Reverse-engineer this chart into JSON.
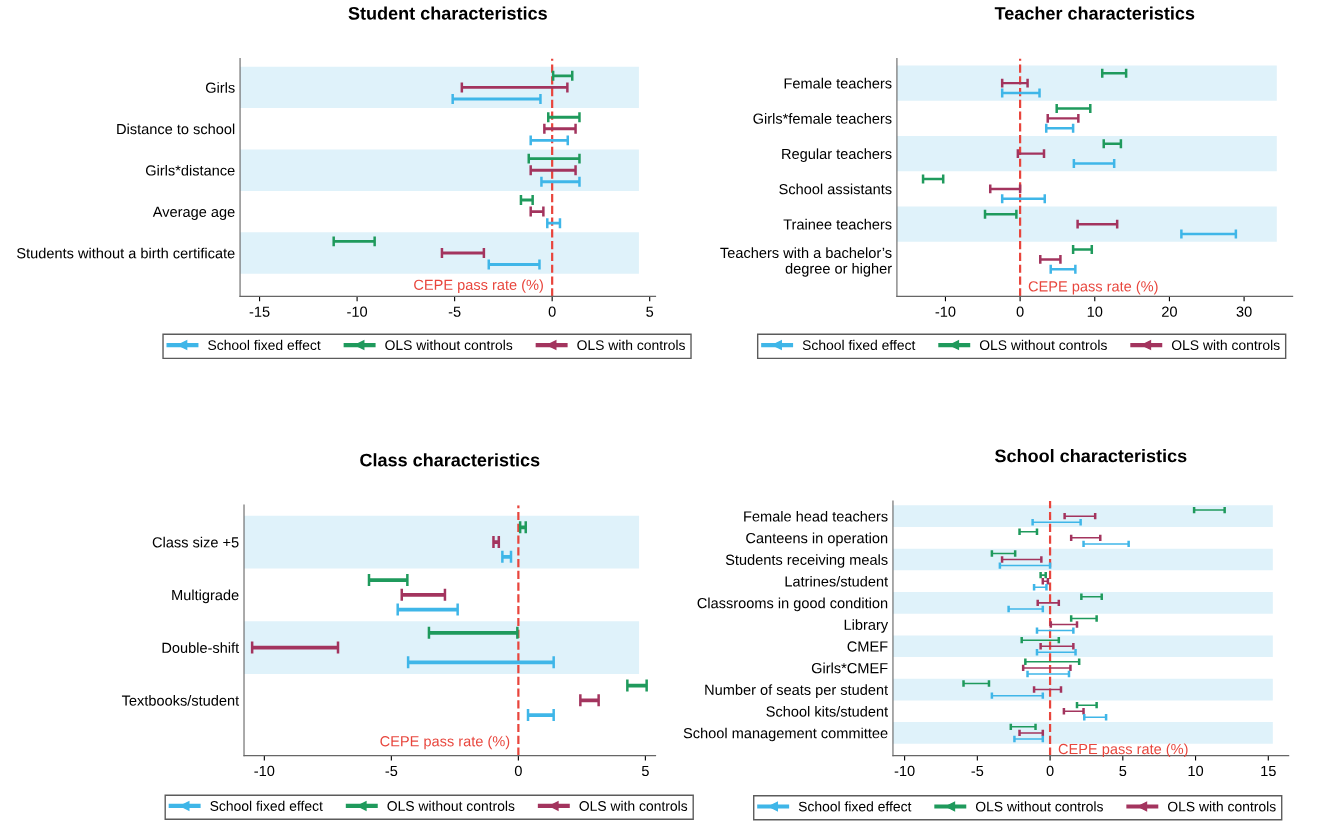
{
  "chart_data": [
    {
      "type": "bar",
      "orientation": "horizontal",
      "title": "Student characteristics",
      "grid": false,
      "legend": "bottom",
      "categories": [
        "Girls",
        "Distance to school",
        "Girls*distance",
        "Average age",
        "Students without a birth certificate"
      ],
      "series": [
        {
          "name": "OLS without controls",
          "color": "#1f9a5c",
          "base": [
            0.05,
            -0.2,
            -1.2,
            -1.6,
            -11.2
          ],
          "values": [
            0.98,
            1.6,
            2.6,
            0.6,
            2.1
          ]
        },
        {
          "name": "OLS with controls",
          "color": "#a3345e",
          "base": [
            -4.63,
            -0.4,
            -1.1,
            -1.1,
            -5.65
          ],
          "values": [
            5.41,
            1.6,
            2.3,
            0.65,
            2.15
          ]
        },
        {
          "name": "School fixed effect",
          "color": "#3fb6e8",
          "base": [
            -5.1,
            -1.1,
            -0.55,
            -0.25,
            -3.25
          ],
          "values": [
            4.5,
            1.9,
            1.95,
            0.65,
            2.6
          ]
        }
      ],
      "xlim": [
        -16,
        5.3
      ],
      "xticks": [
        -15,
        -10,
        -5,
        0,
        5
      ],
      "ref_lines": [
        {
          "axis": "x",
          "value": 0,
          "label": "CEPE pass rate (%)",
          "color": "#e8453c",
          "line_style": "dashed"
        }
      ]
    },
    {
      "type": "bar",
      "orientation": "horizontal",
      "title": "Teacher characteristics",
      "grid": false,
      "legend": "bottom",
      "categories": [
        "Female teachers",
        "Girls*female teachers",
        "Regular teachers",
        "School assistants",
        "Trainee teachers",
        "Teachers with a bachelor’s\ndegree or higher"
      ],
      "series": [
        {
          "name": "OLS without controls",
          "color": "#1f9a5c",
          "base": [
            11.0,
            4.9,
            11.2,
            -13.0,
            -4.7,
            7.1
          ],
          "values": [
            3.2,
            4.5,
            2.3,
            2.7,
            4.2,
            2.5
          ]
        },
        {
          "name": "OLS with controls",
          "color": "#a3345e",
          "base": [
            -2.4,
            3.7,
            -0.3,
            -4.0,
            7.7,
            2.7
          ],
          "values": [
            3.4,
            4.1,
            3.5,
            4.0,
            5.3,
            2.7
          ]
        },
        {
          "name": "School fixed effect",
          "color": "#3fb6e8",
          "base": [
            -2.4,
            3.5,
            7.2,
            -2.4,
            21.6,
            4.1
          ],
          "values": [
            5.0,
            3.6,
            5.4,
            5.7,
            7.3,
            3.3
          ]
        }
      ],
      "xlim": [
        -16.5,
        36.5
      ],
      "xticks": [
        -10,
        0,
        10,
        20,
        30
      ],
      "ref_lines": [
        {
          "axis": "x",
          "value": 0,
          "label": "CEPE pass rate (%)",
          "color": "#e8453c",
          "line_style": "dashed"
        }
      ]
    },
    {
      "type": "bar",
      "orientation": "horizontal",
      "title": "Class characteristics",
      "grid": false,
      "legend": "bottom",
      "categories": [
        "Class size +5",
        "Multigrade",
        "Double-shift",
        "Textbooks/student"
      ],
      "series": [
        {
          "name": "OLS without controls",
          "color": "#1f9a5c",
          "base": [
            0.07,
            -5.88,
            -3.52,
            4.29
          ],
          "values": [
            0.22,
            1.51,
            3.48,
            0.76
          ]
        },
        {
          "name": "OLS with controls",
          "color": "#a3345e",
          "base": [
            -0.98,
            -4.59,
            -10.48,
            2.44
          ],
          "values": [
            0.21,
            1.7,
            3.38,
            0.72
          ]
        },
        {
          "name": "School fixed effect",
          "color": "#3fb6e8",
          "base": [
            -0.63,
            -4.75,
            -4.34,
            0.38
          ],
          "values": [
            0.34,
            2.36,
            5.73,
            1.01
          ]
        }
      ],
      "xlim": [
        -10.8,
        5.4
      ],
      "xticks": [
        -10,
        -5,
        0,
        5
      ],
      "ref_lines": [
        {
          "axis": "x",
          "value": 0,
          "label": "CEPE pass rate (%)",
          "color": "#e8453c",
          "line_style": "dashed"
        }
      ]
    },
    {
      "type": "bar",
      "orientation": "horizontal",
      "title": "School characteristics",
      "grid": false,
      "legend": "bottom",
      "categories": [
        "Female head teachers",
        "Canteens in operation",
        "Students receiving meals",
        "Latrines/student",
        "Classrooms in good condition",
        "Library",
        "CMEF",
        "Girls*CMEF",
        "Number of seats per student",
        "School kits/student",
        "School management committee"
      ],
      "series": [
        {
          "name": "OLS without controls",
          "color": "#1f9a5c",
          "base": [
            9.9,
            -2.1,
            -4.0,
            -0.65,
            2.15,
            1.45,
            -1.95,
            -1.7,
            -5.95,
            1.85,
            -2.7
          ],
          "values": [
            2.1,
            1.2,
            1.6,
            0.35,
            1.4,
            1.75,
            2.55,
            3.7,
            1.75,
            1.35,
            1.7
          ]
        },
        {
          "name": "OLS with controls",
          "color": "#a3345e",
          "base": [
            1.0,
            1.45,
            -3.3,
            -0.5,
            -0.85,
            0.05,
            -0.65,
            -1.85,
            -1.1,
            0.95,
            -2.1
          ],
          "values": [
            2.1,
            2.0,
            2.7,
            0.35,
            1.45,
            1.8,
            2.25,
            3.25,
            1.85,
            1.35,
            1.6
          ]
        },
        {
          "name": "School fixed effect",
          "color": "#3fb6e8",
          "base": [
            -1.2,
            2.3,
            -3.45,
            -1.1,
            -2.85,
            -0.9,
            -0.9,
            -1.55,
            -4.0,
            2.35,
            -2.45
          ],
          "values": [
            3.3,
            3.1,
            3.45,
            0.85,
            2.35,
            2.5,
            2.65,
            2.85,
            3.5,
            1.5,
            1.95
          ]
        }
      ],
      "xlim": [
        -10.8,
        16.4
      ],
      "xticks": [
        -10,
        -5,
        0,
        5,
        10,
        15
      ],
      "ref_lines": [
        {
          "axis": "x",
          "value": 0,
          "label": "CEPE pass rate (%)",
          "color": "#e8453c",
          "line_style": "dashed"
        }
      ]
    }
  ]
}
